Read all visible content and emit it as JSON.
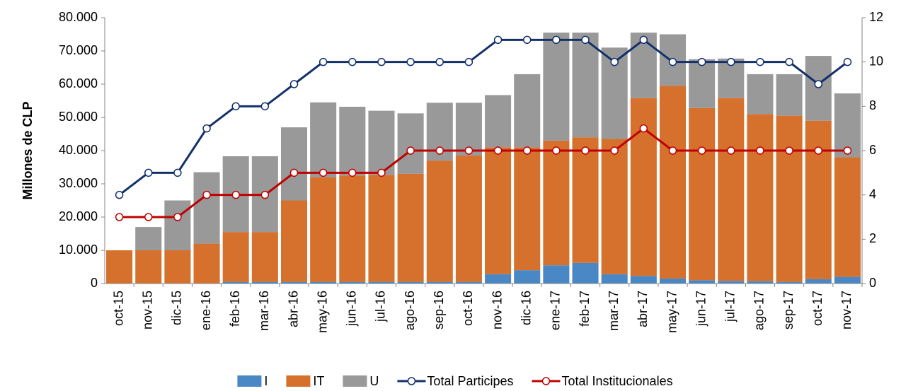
{
  "chart_data": {
    "type": "bar_line",
    "y_label": "Millones de CLP",
    "categories": [
      "oct-15",
      "nov-15",
      "dic-15",
      "ene-16",
      "feb-16",
      "mar-16",
      "abr-16",
      "may-16",
      "jun-16",
      "jul-16",
      "ago-16",
      "sep-16",
      "oct-16",
      "nov-16",
      "dic-16",
      "ene-17",
      "feb-17",
      "mar-17",
      "abr-17",
      "may-17",
      "jun-17",
      "jul-17",
      "ago-17",
      "sep-17",
      "oct-17",
      "nov-17"
    ],
    "series": [
      {
        "name": "I",
        "color": "#4a87c5",
        "values": [
          0,
          0,
          0,
          0,
          500,
          500,
          500,
          500,
          500,
          500,
          500,
          500,
          500,
          2800,
          4000,
          5500,
          6200,
          2800,
          2300,
          1500,
          1000,
          800,
          700,
          500,
          1300,
          2000
        ]
      },
      {
        "name": "IT",
        "color": "#d5712c",
        "values": [
          10000,
          10000,
          10000,
          12000,
          15000,
          15000,
          24500,
          31500,
          32000,
          32200,
          32500,
          36500,
          38000,
          38200,
          37000,
          37500,
          37800,
          40700,
          53500,
          58000,
          51800,
          55000,
          50300,
          50000,
          47700,
          36000
        ]
      },
      {
        "name": "U",
        "color": "#999999",
        "values": [
          0,
          7000,
          15000,
          21500,
          22800,
          22800,
          22000,
          22500,
          20700,
          19300,
          18200,
          17400,
          15900,
          15700,
          22000,
          32500,
          31500,
          27500,
          19700,
          15500,
          14700,
          11900,
          12000,
          12500,
          19500,
          19200
        ]
      },
      {
        "name": "Total Participes",
        "color": "#13306a",
        "axis": "y2",
        "kind": "line",
        "values": [
          4,
          5,
          5,
          7,
          8,
          8,
          9,
          10,
          10,
          10,
          10,
          10,
          10,
          11,
          11,
          11,
          11,
          10,
          11,
          10,
          10,
          10,
          10,
          10,
          9,
          10
        ]
      },
      {
        "name": "Total Institucionales",
        "color": "#c00000",
        "axis": "y2",
        "kind": "line",
        "values": [
          3,
          3,
          3,
          4,
          4,
          4,
          5,
          5,
          5,
          5,
          6,
          6,
          6,
          6,
          6,
          6,
          6,
          6,
          7,
          6,
          6,
          6,
          6,
          6,
          6,
          6
        ]
      }
    ],
    "ylim": [
      0,
      80000
    ],
    "yticks": [
      {
        "value": 0,
        "label": "0"
      },
      {
        "value": 10000,
        "label": "10.000"
      },
      {
        "value": 20000,
        "label": "20.000"
      },
      {
        "value": 30000,
        "label": "30.000"
      },
      {
        "value": 40000,
        "label": "40.000"
      },
      {
        "value": 50000,
        "label": "50.000"
      },
      {
        "value": 60000,
        "label": "60.000"
      },
      {
        "value": 70000,
        "label": "70.000"
      },
      {
        "value": 80000,
        "label": "80.000"
      }
    ],
    "y2lim": [
      0,
      12
    ],
    "y2ticks": [
      0,
      2,
      4,
      6,
      8,
      10,
      12
    ],
    "grid": false,
    "legend": "bottom"
  }
}
